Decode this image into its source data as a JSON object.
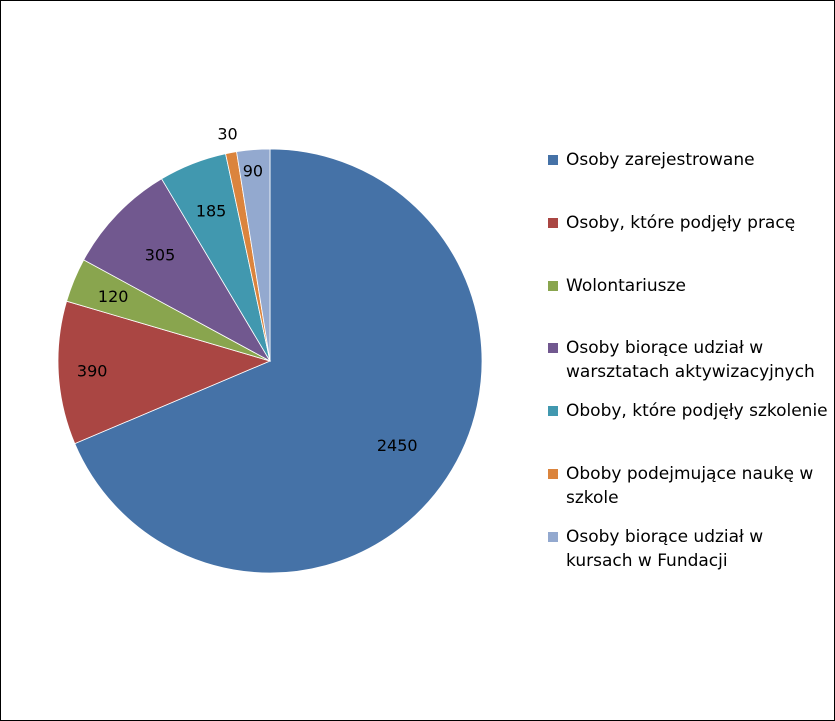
{
  "chart_data": {
    "type": "pie",
    "categories": [
      "Osoby zarejestrowane",
      "Osoby, które podjęły pracę",
      "Wolontariusze",
      "Osoby biorące udział w warsztatach aktywizacyjnych",
      "Oboby, które podjęły szkolenie",
      "Oboby podejmujące naukę w szkole",
      "Osoby biorące udział w kursach w Fundacji"
    ],
    "values": [
      2450,
      390,
      120,
      305,
      185,
      30,
      90
    ],
    "data_labels": [
      "2450",
      "390",
      "120",
      "305",
      "185",
      "30",
      "90"
    ],
    "colors": [
      "#4572A7",
      "#AA4643",
      "#89A54E",
      "#71588F",
      "#4198AF",
      "#DB843D",
      "#93A9CF"
    ],
    "legend_position": "right",
    "title": ""
  }
}
